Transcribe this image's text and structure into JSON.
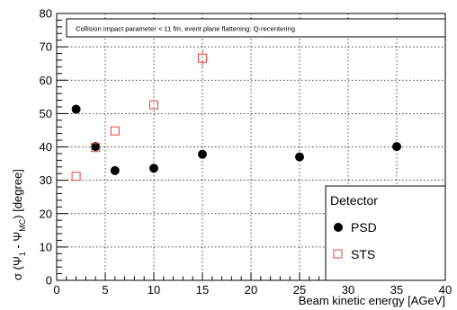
{
  "chart_data": {
    "type": "scatter",
    "title": "",
    "annotation": "Collision impact parameter < 11 fm, event plane flattening: Q-recentering",
    "xlabel": "Beam kinetic energy [AGeV]",
    "ylabel": {
      "prefix": "σ (Ψ",
      "sub1": "1",
      "middle": " - Ψ",
      "sub2": "MC",
      "suffix": ") [degree]"
    },
    "xlim": [
      0,
      40
    ],
    "ylim": [
      0,
      80
    ],
    "xticks": [
      0,
      5,
      10,
      15,
      20,
      25,
      30,
      35,
      40
    ],
    "yticks": [
      0,
      10,
      20,
      30,
      40,
      50,
      60,
      70,
      80
    ],
    "grid": true,
    "legend": {
      "title": "Detector",
      "position": "bottom-right"
    },
    "series": [
      {
        "name": "PSD",
        "marker": "filled-circle",
        "color": "#000000",
        "points": [
          {
            "x": 2,
            "y": 51.3
          },
          {
            "x": 4,
            "y": 40.1
          },
          {
            "x": 6,
            "y": 32.9
          },
          {
            "x": 10,
            "y": 33.6
          },
          {
            "x": 15,
            "y": 37.8
          },
          {
            "x": 25,
            "y": 37.0
          },
          {
            "x": 35,
            "y": 40.1
          }
        ]
      },
      {
        "name": "STS",
        "marker": "open-square",
        "color": "#e8403a",
        "points": [
          {
            "x": 2,
            "y": 31.2,
            "err": 0.4
          },
          {
            "x": 4,
            "y": 39.8,
            "err": 0.4
          },
          {
            "x": 6,
            "y": 44.8,
            "err": 0.6
          },
          {
            "x": 10,
            "y": 52.6,
            "err": 1.0
          },
          {
            "x": 15,
            "y": 66.6,
            "err": 2.6
          }
        ]
      }
    ]
  }
}
